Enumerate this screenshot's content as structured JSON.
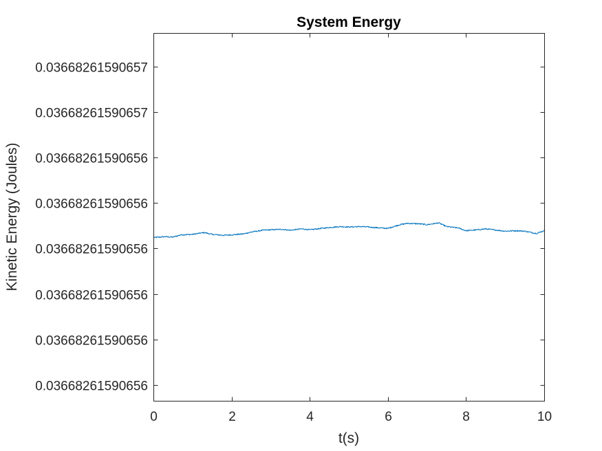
{
  "chart_data": {
    "type": "line",
    "title": "System Energy",
    "xlabel": "t(s)",
    "ylabel": "Kinetic Energy (Joules)",
    "xlim": [
      0,
      10
    ],
    "ylim": [
      0,
      8
    ],
    "xticks": [
      0,
      2,
      4,
      6,
      8,
      10
    ],
    "xtick_labels": [
      "0",
      "2",
      "4",
      "6",
      "8",
      "10"
    ],
    "yticks": [
      7,
      6,
      5,
      4,
      3,
      2,
      1,
      0
    ],
    "ytick_labels": [
      "0.03668261590657",
      "0.03668261590657",
      "0.03668261590656",
      "0.03668261590656",
      "0.03668261590656",
      "0.03668261590656",
      "0.03668261590656",
      "0.03668261590656"
    ],
    "grid": false,
    "series": [
      {
        "color": "#0072BD",
        "x": [
          0,
          0.3,
          0.5,
          0.7,
          1.0,
          1.3,
          1.5,
          1.8,
          2.0,
          2.3,
          2.5,
          2.8,
          3.0,
          3.3,
          3.5,
          3.8,
          4.0,
          4.3,
          4.5,
          4.8,
          5.0,
          5.3,
          5.5,
          5.8,
          6.0,
          6.3,
          6.5,
          6.8,
          7.0,
          7.3,
          7.5,
          7.8,
          8.0,
          8.3,
          8.5,
          8.8,
          9.0,
          9.3,
          9.5,
          9.8,
          10.0
        ],
        "y": [
          3.55,
          3.57,
          3.56,
          3.61,
          3.62,
          3.66,
          3.62,
          3.6,
          3.61,
          3.63,
          3.67,
          3.71,
          3.72,
          3.73,
          3.71,
          3.74,
          3.72,
          3.75,
          3.77,
          3.79,
          3.78,
          3.79,
          3.78,
          3.76,
          3.75,
          3.83,
          3.86,
          3.85,
          3.83,
          3.87,
          3.79,
          3.76,
          3.7,
          3.72,
          3.74,
          3.71,
          3.69,
          3.7,
          3.69,
          3.64,
          3.7
        ]
      }
    ]
  }
}
